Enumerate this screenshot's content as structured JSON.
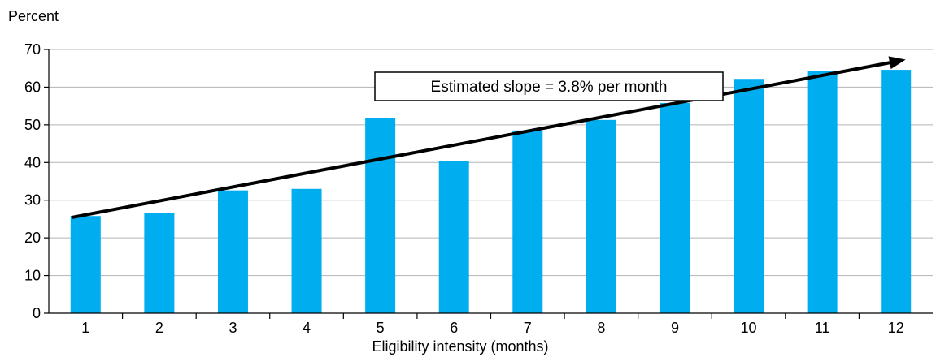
{
  "chart_data": {
    "type": "bar",
    "title": "",
    "ylabel": "Percent",
    "xlabel": "Eligibility intensity (months)",
    "categories": [
      "1",
      "2",
      "3",
      "4",
      "5",
      "6",
      "7",
      "8",
      "9",
      "10",
      "11",
      "12"
    ],
    "values": [
      25.8,
      26.5,
      32.6,
      33.0,
      51.8,
      40.4,
      48.5,
      51.3,
      55.8,
      62.2,
      64.3,
      64.6
    ],
    "ylim": [
      0,
      70
    ],
    "yticks": [
      "0",
      "10",
      "20",
      "30",
      "40",
      "50",
      "60",
      "70"
    ],
    "grid": true,
    "bar_color": "#00AEEF",
    "trend_line": {
      "start": {
        "x": 1,
        "y": 25.4
      },
      "end": {
        "x": 12,
        "y": 67.3
      },
      "arrow": true
    },
    "annotation": "Estimated slope = 3.8% per month"
  }
}
